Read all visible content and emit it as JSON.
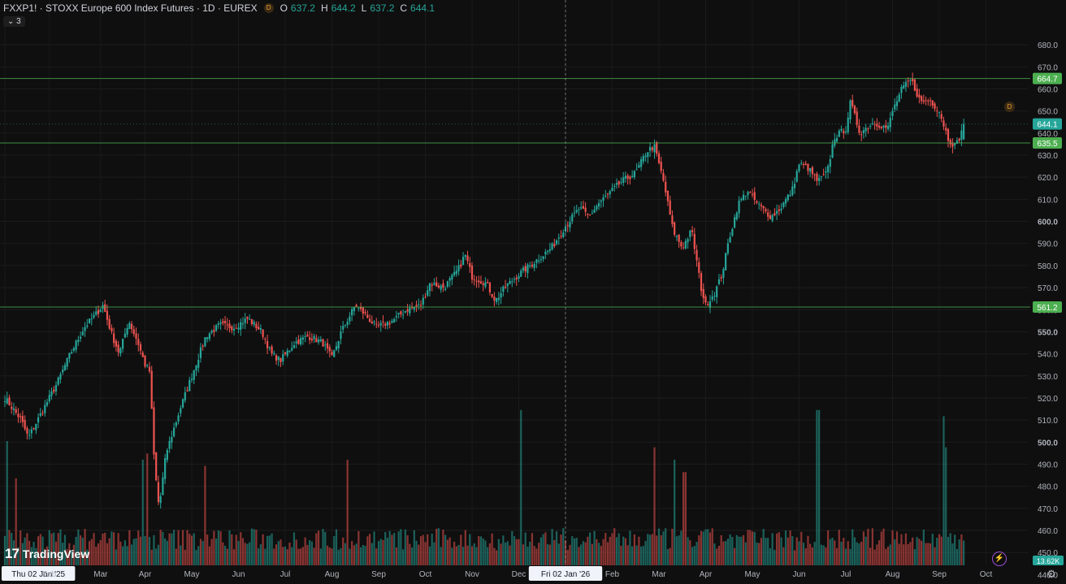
{
  "header": {
    "symbol": "FXXP1! · STOXX Europe 600 Index Futures · 1D · EUREX",
    "badge": "D",
    "open_label": "O",
    "open": "637.2",
    "high_label": "H",
    "high": "644.2",
    "low_label": "L",
    "low": "637.2",
    "close_label": "C",
    "close": "644.1",
    "collapse": "⌄ 3"
  },
  "brand": {
    "mark": "17",
    "name": "TradingView"
  },
  "icons": {
    "settings": "gear-icon",
    "bolt": "lightning-icon",
    "dividend": "D"
  },
  "colors": {
    "up": "#26a69a",
    "down": "#ef5350",
    "hline": "#4caf50",
    "cursor": "#9598a1",
    "last": "#26a69a"
  },
  "chart_data": {
    "type": "candlestick",
    "title": "FXXP1! · STOXX Europe 600 Index Futures · 1D · EUREX",
    "price_axis": {
      "min": 435,
      "max": 684,
      "ticks": [
        680,
        670,
        660,
        650,
        640,
        630,
        620,
        610,
        600,
        590,
        580,
        570,
        560,
        550,
        540,
        530,
        520,
        510,
        500,
        490,
        480,
        470,
        460,
        450,
        440
      ]
    },
    "time_axis": {
      "labels": [
        {
          "t": 0.0,
          "label": "Thu 02 Jan '25",
          "boxed": true
        },
        {
          "t": 0.95,
          "label": "Feb"
        },
        {
          "t": 2.05,
          "label": "Mar"
        },
        {
          "t": 3.0,
          "label": "Apr"
        },
        {
          "t": 4.0,
          "label": "May"
        },
        {
          "t": 5.0,
          "label": "Jun"
        },
        {
          "t": 6.0,
          "label": "Jul"
        },
        {
          "t": 7.0,
          "label": "Aug"
        },
        {
          "t": 8.0,
          "label": "Sep"
        },
        {
          "t": 9.0,
          "label": "Oct"
        },
        {
          "t": 10.0,
          "label": "Nov"
        },
        {
          "t": 11.0,
          "label": "Dec"
        },
        {
          "t": 12.0,
          "label": "Fri 02 Jan '26",
          "boxed": true
        },
        {
          "t": 13.0,
          "label": "Feb"
        },
        {
          "t": 14.0,
          "label": "Mar"
        },
        {
          "t": 15.0,
          "label": "Apr"
        },
        {
          "t": 16.0,
          "label": "May"
        },
        {
          "t": 17.0,
          "label": "Jun"
        },
        {
          "t": 18.0,
          "label": "Jul"
        },
        {
          "t": 19.0,
          "label": "Aug"
        },
        {
          "t": 20.0,
          "label": "Sep"
        },
        {
          "t": 21.0,
          "label": "Oct"
        }
      ]
    },
    "path_points": [
      [
        0.0,
        520
      ],
      [
        0.35,
        510
      ],
      [
        0.5,
        502
      ],
      [
        0.75,
        512
      ],
      [
        1.1,
        526
      ],
      [
        1.4,
        540
      ],
      [
        1.7,
        552
      ],
      [
        1.95,
        558
      ],
      [
        2.1,
        562
      ],
      [
        2.3,
        548
      ],
      [
        2.45,
        540
      ],
      [
        2.65,
        555
      ],
      [
        2.85,
        545
      ],
      [
        3.0,
        535
      ],
      [
        3.1,
        532
      ],
      [
        3.2,
        490
      ],
      [
        3.3,
        470
      ],
      [
        3.45,
        495
      ],
      [
        3.6,
        505
      ],
      [
        3.75,
        515
      ],
      [
        4.0,
        530
      ],
      [
        4.3,
        548
      ],
      [
        4.6,
        553
      ],
      [
        4.9,
        552
      ],
      [
        5.2,
        556
      ],
      [
        5.5,
        550
      ],
      [
        5.7,
        540
      ],
      [
        5.9,
        537
      ],
      [
        6.2,
        545
      ],
      [
        6.5,
        548
      ],
      [
        6.8,
        545
      ],
      [
        7.0,
        538
      ],
      [
        7.2,
        550
      ],
      [
        7.5,
        562
      ],
      [
        7.7,
        558
      ],
      [
        7.95,
        552
      ],
      [
        8.3,
        555
      ],
      [
        8.6,
        560
      ],
      [
        8.9,
        562
      ],
      [
        9.1,
        572
      ],
      [
        9.4,
        570
      ],
      [
        9.7,
        578
      ],
      [
        9.85,
        585
      ],
      [
        10.0,
        575
      ],
      [
        10.3,
        572
      ],
      [
        10.5,
        564
      ],
      [
        10.7,
        570
      ],
      [
        11.0,
        576
      ],
      [
        11.3,
        581
      ],
      [
        11.7,
        588
      ],
      [
        12.0,
        598
      ],
      [
        12.3,
        606
      ],
      [
        12.5,
        602
      ],
      [
        12.7,
        608
      ],
      [
        12.9,
        612
      ],
      [
        13.2,
        618
      ],
      [
        13.5,
        622
      ],
      [
        13.75,
        632
      ],
      [
        13.9,
        634
      ],
      [
        14.1,
        618
      ],
      [
        14.3,
        596
      ],
      [
        14.5,
        588
      ],
      [
        14.7,
        596
      ],
      [
        14.9,
        570
      ],
      [
        15.0,
        562
      ],
      [
        15.2,
        568
      ],
      [
        15.35,
        576
      ],
      [
        15.5,
        592
      ],
      [
        15.7,
        608
      ],
      [
        15.9,
        614
      ],
      [
        16.1,
        608
      ],
      [
        16.4,
        602
      ],
      [
        16.6,
        606
      ],
      [
        16.85,
        614
      ],
      [
        17.0,
        626
      ],
      [
        17.2,
        624
      ],
      [
        17.4,
        618
      ],
      [
        17.6,
        622
      ],
      [
        17.75,
        638
      ],
      [
        18.0,
        642
      ],
      [
        18.1,
        654
      ],
      [
        18.3,
        640
      ],
      [
        18.6,
        645
      ],
      [
        18.9,
        642
      ],
      [
        19.0,
        650
      ],
      [
        19.2,
        660
      ],
      [
        19.4,
        664
      ],
      [
        19.6,
        654
      ],
      [
        19.8,
        655
      ],
      [
        20.0,
        650
      ],
      [
        20.2,
        637
      ],
      [
        20.35,
        634
      ],
      [
        20.55,
        644.1
      ]
    ],
    "volume_axis": {
      "label": "13.62K"
    },
    "volume_spikes": [
      {
        "t": 0.05,
        "v": 1.0
      },
      {
        "t": 0.25,
        "v": 0.7
      },
      {
        "t": 2.95,
        "v": 0.85
      },
      {
        "t": 3.05,
        "v": 0.9
      },
      {
        "t": 4.3,
        "v": 0.8
      },
      {
        "t": 7.35,
        "v": 0.85
      },
      {
        "t": 11.05,
        "v": 1.25
      },
      {
        "t": 13.9,
        "v": 0.95
      },
      {
        "t": 14.35,
        "v": 0.85
      },
      {
        "t": 14.55,
        "v": 0.75
      },
      {
        "t": 17.4,
        "v": 1.25
      },
      {
        "t": 20.1,
        "v": 1.2
      },
      {
        "t": 20.15,
        "v": 0.95
      }
    ],
    "horizontal_lines": [
      {
        "price": 664.7,
        "label": "664.7"
      },
      {
        "price": 635.5,
        "label": "635.5"
      },
      {
        "price": 561.2,
        "label": "561.2"
      }
    ],
    "last_price": {
      "price": 644.1,
      "label": "644.1"
    },
    "crosshair_t": 12.0
  }
}
